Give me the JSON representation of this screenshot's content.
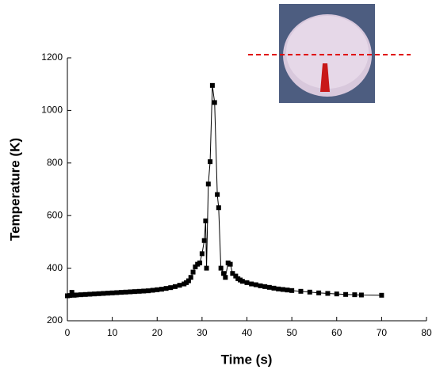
{
  "chart_data": {
    "type": "line",
    "xlabel": "Time (s)",
    "ylabel": "Temperature (K)",
    "xlim": [
      0,
      80
    ],
    "xticks": [
      0,
      10,
      20,
      30,
      40,
      50,
      60,
      70,
      80
    ],
    "ylim": [
      200,
      1200
    ],
    "yticks": [
      200,
      400,
      600,
      800,
      1000,
      1200
    ],
    "series": [
      {
        "color": "#000000",
        "x": [
          0,
          0.5,
          1,
          1.5,
          2,
          3,
          4,
          5,
          6,
          7,
          8,
          9,
          10,
          11,
          12,
          13,
          14,
          15,
          16,
          17,
          18,
          19,
          20,
          21,
          22,
          23,
          24,
          25,
          26,
          26.5,
          27,
          27.5,
          28,
          28.5,
          29,
          29.5,
          30,
          30.5,
          30.8,
          31,
          31.4,
          31.8,
          32.3,
          32.8,
          33.4,
          33.7,
          34.2,
          34.8,
          35.2,
          35.8,
          36.3,
          36.8,
          37.5,
          38,
          38.5,
          39,
          40,
          41,
          42,
          43,
          44,
          45,
          46,
          47,
          48,
          49,
          50,
          52,
          54,
          56,
          58,
          60,
          62,
          64,
          65.5,
          70
        ],
        "values": [
          295,
          296,
          308,
          297,
          298,
          299,
          300,
          301,
          302,
          303,
          304,
          305,
          306,
          307,
          308,
          309,
          310,
          311,
          312,
          313,
          314,
          316,
          318,
          320,
          323,
          326,
          330,
          335,
          340,
          345,
          352,
          365,
          385,
          405,
          415,
          420,
          455,
          505,
          580,
          400,
          720,
          805,
          1095,
          1030,
          680,
          630,
          400,
          380,
          365,
          420,
          415,
          380,
          370,
          360,
          355,
          350,
          345,
          340,
          337,
          333,
          330,
          327,
          324,
          321,
          319,
          317,
          315,
          312,
          309,
          306,
          304,
          302,
          300,
          299,
          298,
          297
        ]
      }
    ]
  }
}
